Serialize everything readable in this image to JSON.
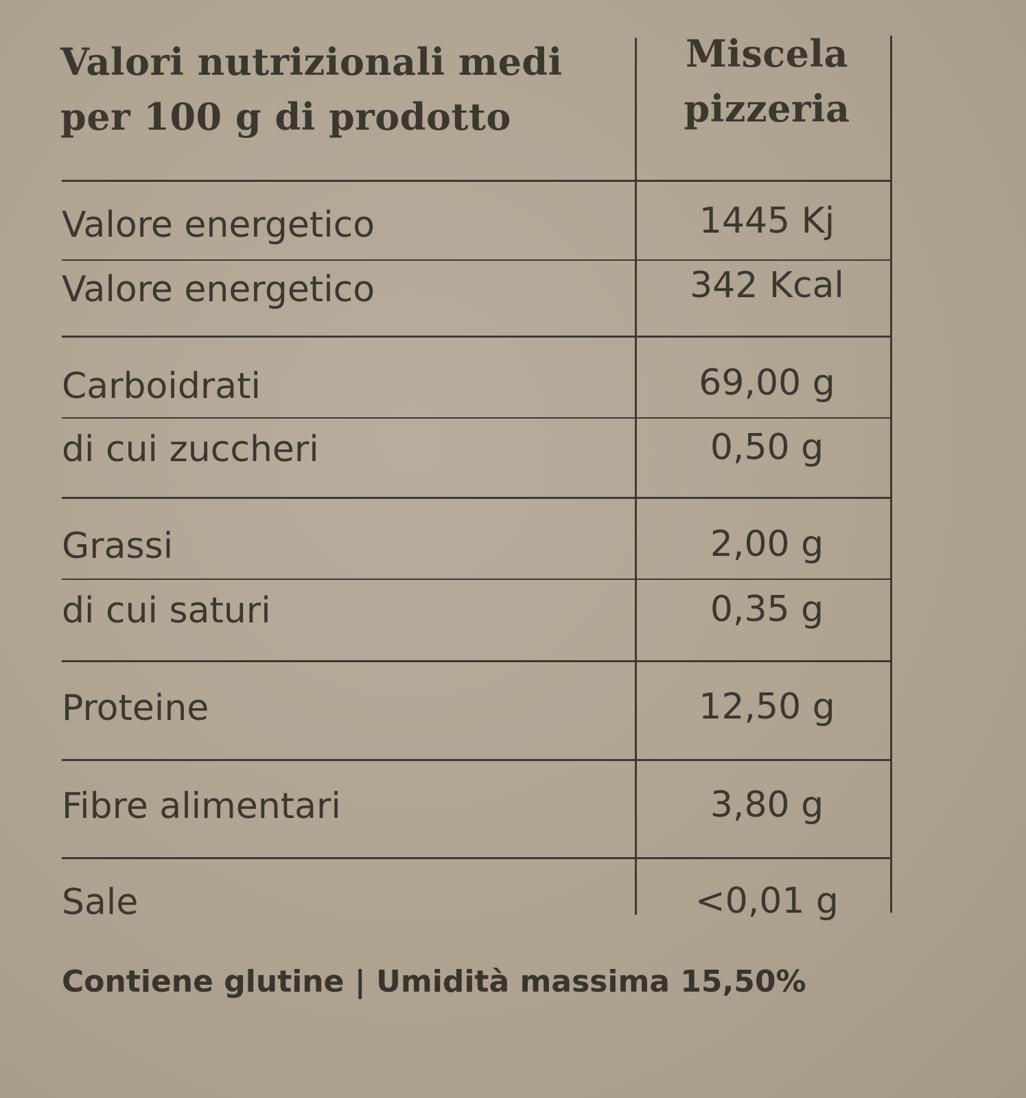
{
  "header": {
    "label_line1": "Valori nutrizionali medi",
    "label_line2": "per 100 g di prodotto",
    "column_line1": "Miscela",
    "column_line2": "pizzeria"
  },
  "rows": [
    {
      "label": "Valore energetico",
      "value": "1445 Kj"
    },
    {
      "label": "Valore energetico",
      "value": "342 Kcal"
    },
    {
      "label": "Carboidrati",
      "value": "69,00 g"
    },
    {
      "label": "di cui zuccheri",
      "value": "0,50 g"
    },
    {
      "label": "Grassi",
      "value": "2,00 g"
    },
    {
      "label": "di cui saturi",
      "value": "0,35 g"
    },
    {
      "label": "Proteine",
      "value": "12,50 g"
    },
    {
      "label": "Fibre alimentari",
      "value": "3,80 g"
    },
    {
      "label": "Sale",
      "value": "<0,01 g"
    }
  ],
  "footer": "Contiene glutine | Umidità massima 15,50%"
}
